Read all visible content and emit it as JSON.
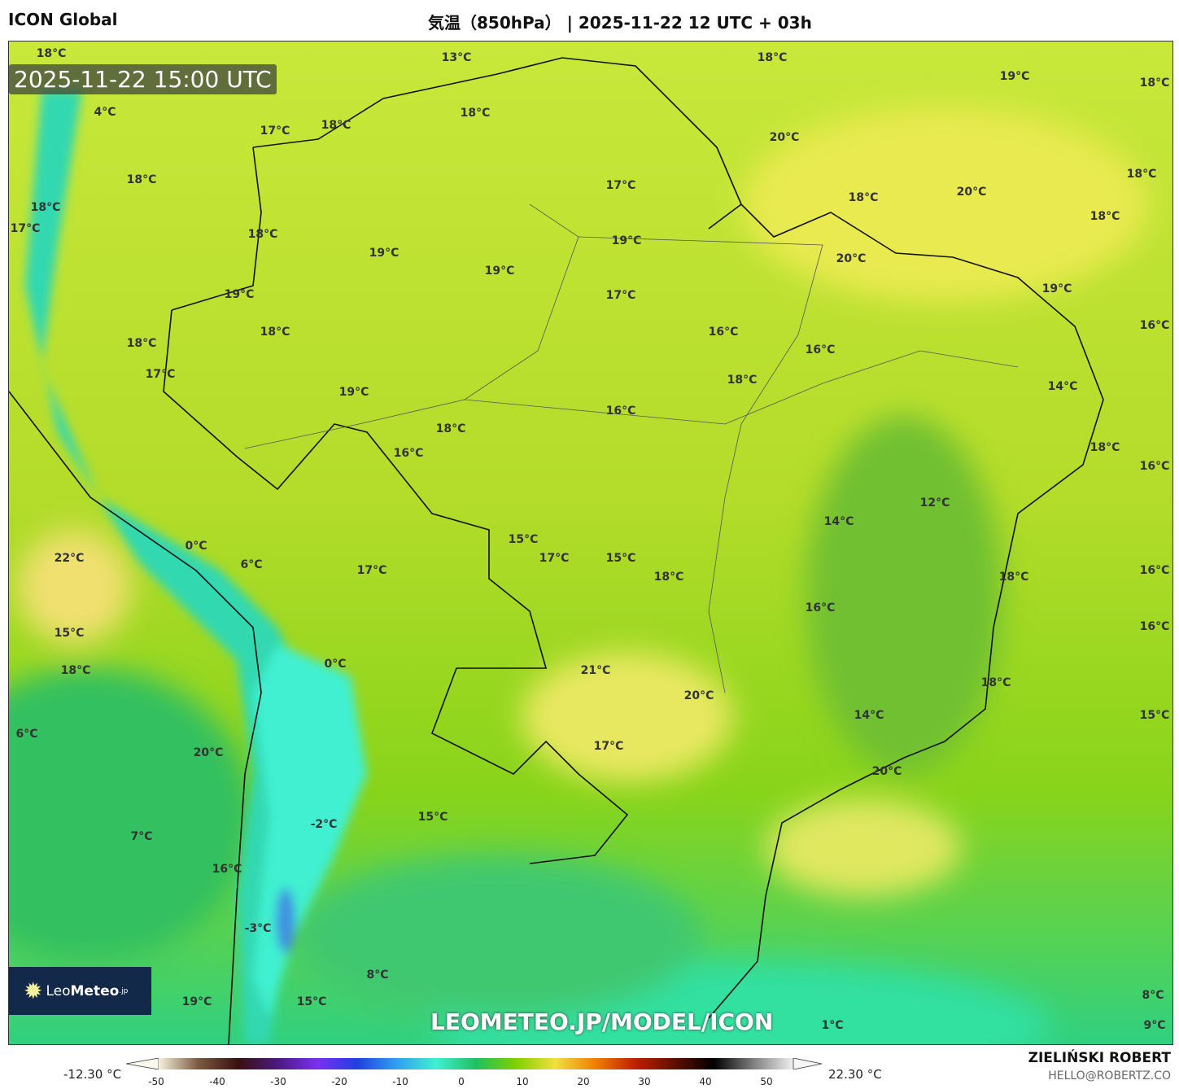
{
  "header": {
    "model": "ICON Global",
    "title": "気温（850hPa） | 2025-11-22 12 UTC + 03h"
  },
  "map": {
    "valid_time": "2025-11-22 15:00 UTC",
    "watermark": "LEOMETEO.JP/MODEL/ICON",
    "logo": {
      "leo": "Leo",
      "meteo": "Meteo",
      "jp": ".jp"
    },
    "labels": [
      "18°C",
      "13°C",
      "18°C",
      "19°C",
      "18°C",
      "4°C",
      "18°C",
      "17°C",
      "18°C",
      "20°C",
      "18°C",
      "18°C",
      "17°C",
      "20°C",
      "18°C",
      "18°C",
      "18°C",
      "17°C",
      "18°C",
      "19°C",
      "19°C",
      "20°C",
      "19°C",
      "19°C",
      "19°C",
      "17°C",
      "16°C",
      "18°C",
      "16°C",
      "18°C",
      "16°C",
      "17°C",
      "18°C",
      "14°C",
      "19°C",
      "16°C",
      "18°C",
      "18°C",
      "16°C",
      "16°C",
      "12°C",
      "14°C",
      "15°C",
      "0°C",
      "17°C",
      "15°C",
      "22°C",
      "6°C",
      "17°C",
      "16°C",
      "18°C",
      "18°C",
      "16°C",
      "16°C",
      "15°C",
      "0°C",
      "18°C",
      "21°C",
      "18°C",
      "20°C",
      "15°C",
      "14°C",
      "6°C",
      "17°C",
      "20°C",
      "20°C",
      "15°C",
      "-2°C",
      "7°C",
      "16°C",
      "-3°C",
      "8°C",
      "8°C",
      "19°C",
      "15°C",
      "1°C",
      "9°C"
    ]
  },
  "colorbar": {
    "min_label": "-12.30 °C",
    "max_label": "22.30 °C",
    "ticks": [
      "-50",
      "-40",
      "-30",
      "-20",
      "-10",
      "0",
      "10",
      "20",
      "30",
      "40",
      "50"
    ],
    "colors": [
      "#f5f0dc",
      "#7a5a40",
      "#3a1010",
      "#4a1a80",
      "#7a30f0",
      "#2040e0",
      "#30a0f0",
      "#40f0d0",
      "#20c060",
      "#80d000",
      "#f0e040",
      "#f08000",
      "#c02000",
      "#601000",
      "#000000",
      "#808080",
      "#f0f0f0"
    ]
  },
  "credit": {
    "author": "ZIELIŃSKI ROBERT",
    "email": "HELLO@ROBERTZ.CO"
  }
}
